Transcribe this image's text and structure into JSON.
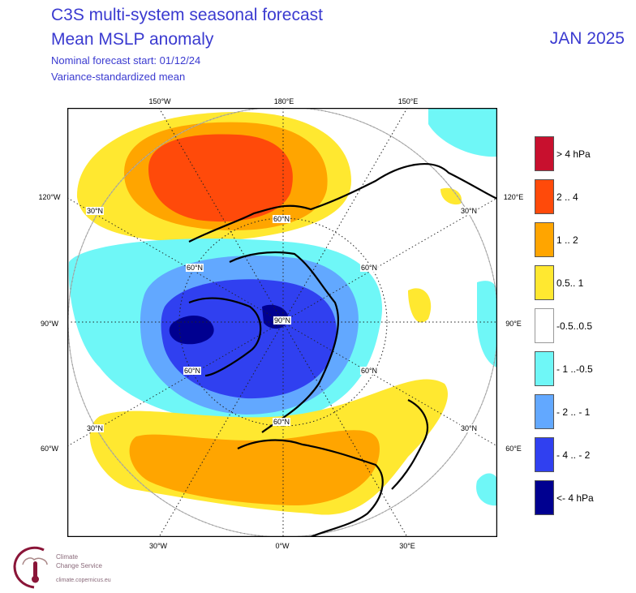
{
  "header": {
    "title_line1": "C3S multi-system seasonal forecast",
    "title_line2": "Mean MSLP anomaly",
    "subtitle_line1": "Nominal forecast start: 01/12/24",
    "subtitle_line2": "Variance-standardized mean",
    "valid_month": "JAN 2025"
  },
  "map": {
    "projection": "north polar stereographic",
    "longitude_labels": {
      "top": [
        "150°W",
        "180°E",
        "150°E"
      ],
      "left": [
        "120°W",
        "90°W",
        "60°W"
      ],
      "right": [
        "120°E",
        "90°E",
        "60°E"
      ],
      "bottom": [
        "30°W",
        "0°W",
        "30°E"
      ]
    },
    "latitude_labels": {
      "30n": "30°N",
      "60n": "60°N",
      "90n": "90°N"
    }
  },
  "legend": {
    "items": [
      {
        "label": ">  4 hPa",
        "color": "#c8102e"
      },
      {
        "label": "2 .. 4",
        "color": "#ff4a0a"
      },
      {
        "label": "1 .. 2",
        "color": "#ffa500"
      },
      {
        "label": "0.5.. 1",
        "color": "#ffe830"
      },
      {
        "label": "-0.5..0.5",
        "color": "#ffffff"
      },
      {
        "label": "- 1 ..-0.5",
        "color": "#6ff7f7"
      },
      {
        "label": "- 2 .. - 1",
        "color": "#62a8ff"
      },
      {
        "label": "- 4 .. - 2",
        "color": "#3040f0"
      },
      {
        "label": "<- 4 hPa",
        "color": "#000090"
      }
    ]
  },
  "footer": {
    "logo_text_line1": "Climate",
    "logo_text_line2": "Change Service",
    "logo_url_text": "climate.copernicus.eu"
  }
}
